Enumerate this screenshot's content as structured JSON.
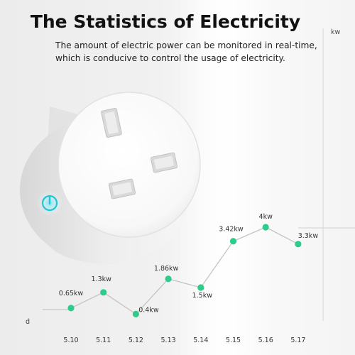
{
  "header": {
    "title": "The Statistics of Electricity",
    "subtitle": "The amount of electric power can be monitored in real-time, which is conducive to control the usage of electricity."
  },
  "chart_data": {
    "type": "line",
    "xlabel": "d",
    "ylabel": "kw",
    "categories": [
      "5.10",
      "5.11",
      "5.12",
      "5.13",
      "5.14",
      "5.15",
      "5.16",
      "5.17"
    ],
    "series": [
      {
        "values": [
          0.65,
          1.3,
          0.4,
          1.86,
          1.5,
          3.42,
          4,
          3.3
        ],
        "labels": [
          "0.65kw",
          "1.3kw",
          "0.4kw",
          "1.86kw",
          "1.5kw",
          "3.42kw",
          "4kw",
          "3.3kw"
        ],
        "color": "#2ecc8a"
      }
    ],
    "ylim": [
      0,
      4.9
    ],
    "grid": false,
    "legend": "none"
  },
  "colors": {
    "marker": "#2ecc8a",
    "line": "#c4c4c4",
    "power_icon": "#22c4d8"
  },
  "device": {
    "icon": "smart-plug-uk",
    "button_icon": "power-icon"
  }
}
